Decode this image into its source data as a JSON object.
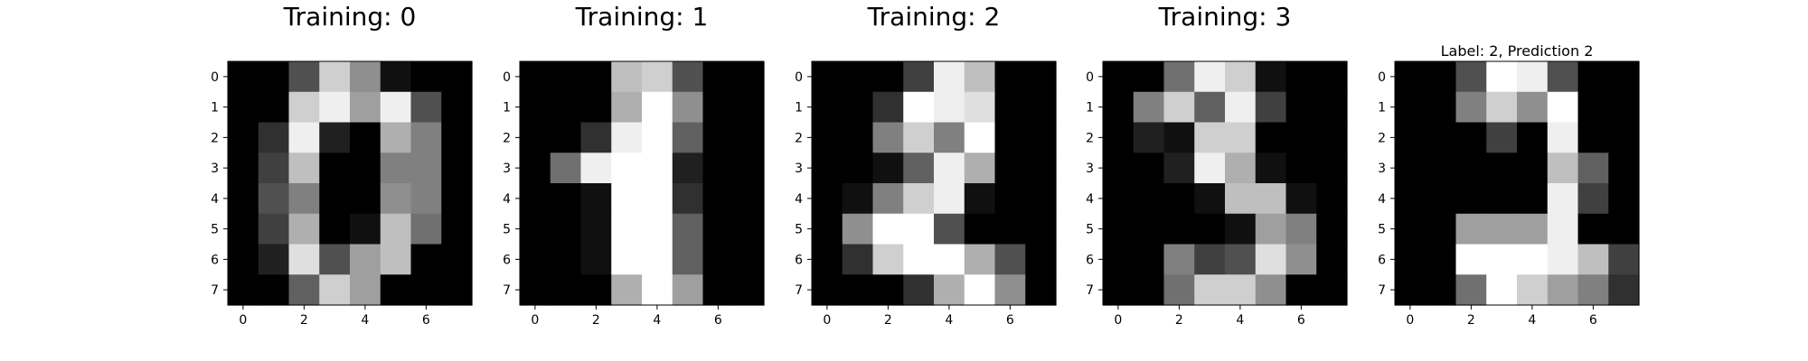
{
  "chart_data": [
    {
      "type": "heatmap",
      "title": "Training: 0",
      "x_ticks": [
        0,
        2,
        4,
        6
      ],
      "y_ticks": [
        0,
        1,
        2,
        3,
        4,
        5,
        6,
        7
      ],
      "xlim": [
        -0.5,
        7.5
      ],
      "ylim": [
        7.5,
        -0.5
      ],
      "colormap": "gray_r",
      "vmin": 0,
      "vmax": 16,
      "matrix": [
        [
          0,
          0,
          5,
          13,
          9,
          1,
          0,
          0
        ],
        [
          0,
          0,
          13,
          15,
          10,
          15,
          5,
          0
        ],
        [
          0,
          3,
          15,
          2,
          0,
          11,
          8,
          0
        ],
        [
          0,
          4,
          12,
          0,
          0,
          8,
          8,
          0
        ],
        [
          0,
          5,
          8,
          0,
          0,
          9,
          8,
          0
        ],
        [
          0,
          4,
          11,
          0,
          1,
          12,
          7,
          0
        ],
        [
          0,
          2,
          14,
          5,
          10,
          12,
          0,
          0
        ],
        [
          0,
          0,
          6,
          13,
          10,
          0,
          0,
          0
        ]
      ]
    },
    {
      "type": "heatmap",
      "title": "Training: 1",
      "x_ticks": [
        0,
        2,
        4,
        6
      ],
      "y_ticks": [
        0,
        1,
        2,
        3,
        4,
        5,
        6,
        7
      ],
      "xlim": [
        -0.5,
        7.5
      ],
      "ylim": [
        7.5,
        -0.5
      ],
      "colormap": "gray_r",
      "vmin": 0,
      "vmax": 16,
      "matrix": [
        [
          0,
          0,
          0,
          12,
          13,
          5,
          0,
          0
        ],
        [
          0,
          0,
          0,
          11,
          16,
          9,
          0,
          0
        ],
        [
          0,
          0,
          3,
          15,
          16,
          6,
          0,
          0
        ],
        [
          0,
          7,
          15,
          16,
          16,
          2,
          0,
          0
        ],
        [
          0,
          0,
          1,
          16,
          16,
          3,
          0,
          0
        ],
        [
          0,
          0,
          1,
          16,
          16,
          6,
          0,
          0
        ],
        [
          0,
          0,
          1,
          16,
          16,
          6,
          0,
          0
        ],
        [
          0,
          0,
          0,
          11,
          16,
          10,
          0,
          0
        ]
      ]
    },
    {
      "type": "heatmap",
      "title": "Training: 2",
      "x_ticks": [
        0,
        2,
        4,
        6
      ],
      "y_ticks": [
        0,
        1,
        2,
        3,
        4,
        5,
        6,
        7
      ],
      "xlim": [
        -0.5,
        7.5
      ],
      "ylim": [
        7.5,
        -0.5
      ],
      "colormap": "gray_r",
      "vmin": 0,
      "vmax": 16,
      "matrix": [
        [
          0,
          0,
          0,
          4,
          15,
          12,
          0,
          0
        ],
        [
          0,
          0,
          3,
          16,
          15,
          14,
          0,
          0
        ],
        [
          0,
          0,
          8,
          13,
          8,
          16,
          0,
          0
        ],
        [
          0,
          0,
          1,
          6,
          15,
          11,
          0,
          0
        ],
        [
          0,
          1,
          8,
          13,
          15,
          1,
          0,
          0
        ],
        [
          0,
          9,
          16,
          16,
          5,
          0,
          0,
          0
        ],
        [
          0,
          3,
          13,
          16,
          16,
          11,
          5,
          0
        ],
        [
          0,
          0,
          0,
          3,
          11,
          16,
          9,
          0
        ]
      ]
    },
    {
      "type": "heatmap",
      "title": "Training: 3",
      "x_ticks": [
        0,
        2,
        4,
        6
      ],
      "y_ticks": [
        0,
        1,
        2,
        3,
        4,
        5,
        6,
        7
      ],
      "xlim": [
        -0.5,
        7.5
      ],
      "ylim": [
        7.5,
        -0.5
      ],
      "colormap": "gray_r",
      "vmin": 0,
      "vmax": 16,
      "matrix": [
        [
          0,
          0,
          7,
          15,
          13,
          1,
          0,
          0
        ],
        [
          0,
          8,
          13,
          6,
          15,
          4,
          0,
          0
        ],
        [
          0,
          2,
          1,
          13,
          13,
          0,
          0,
          0
        ],
        [
          0,
          0,
          2,
          15,
          11,
          1,
          0,
          0
        ],
        [
          0,
          0,
          0,
          1,
          12,
          12,
          1,
          0
        ],
        [
          0,
          0,
          0,
          0,
          1,
          10,
          8,
          0
        ],
        [
          0,
          0,
          8,
          4,
          5,
          14,
          9,
          0
        ],
        [
          0,
          0,
          7,
          13,
          13,
          9,
          0,
          0
        ]
      ]
    },
    {
      "type": "heatmap",
      "title": "Label: 2, Prediction 2",
      "x_ticks": [
        0,
        2,
        4,
        6
      ],
      "y_ticks": [
        0,
        1,
        2,
        3,
        4,
        5,
        6,
        7
      ],
      "xlim": [
        -0.5,
        7.5
      ],
      "ylim": [
        7.5,
        -0.5
      ],
      "colormap": "gray_r",
      "vmin": 0,
      "vmax": 16,
      "matrix": [
        [
          0,
          0,
          5,
          16,
          15,
          5,
          0,
          0
        ],
        [
          0,
          0,
          8,
          13,
          9,
          16,
          0,
          0
        ],
        [
          0,
          0,
          0,
          4,
          0,
          15,
          0,
          0
        ],
        [
          0,
          0,
          0,
          0,
          0,
          12,
          6,
          0
        ],
        [
          0,
          0,
          0,
          0,
          0,
          15,
          4,
          0
        ],
        [
          0,
          0,
          10,
          10,
          10,
          15,
          0,
          0
        ],
        [
          0,
          0,
          16,
          16,
          16,
          15,
          12,
          4
        ],
        [
          0,
          0,
          7,
          16,
          13,
          10,
          8,
          3
        ]
      ]
    }
  ]
}
